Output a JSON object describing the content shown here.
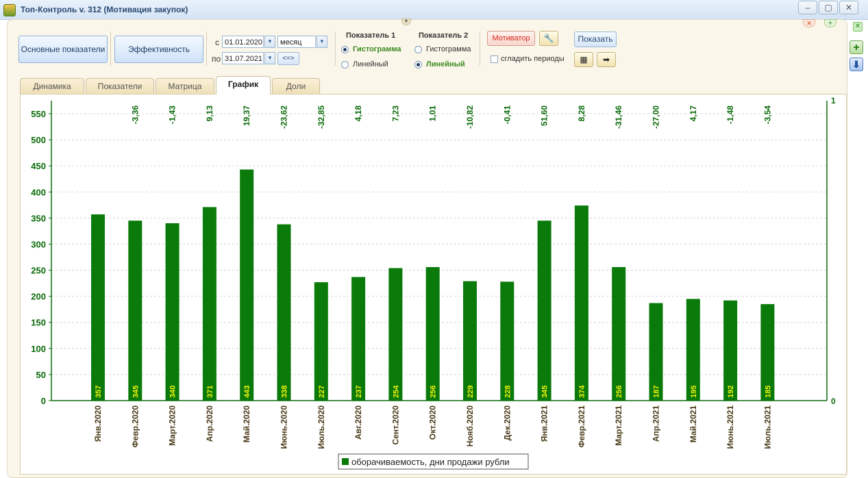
{
  "window": {
    "title": "Топ-Контроль v. 312 (Мотивация закупок)",
    "buttons": [
      "–",
      "▢",
      "✕"
    ]
  },
  "toolbar": {
    "main_button": "Основные показатели",
    "efficiency_button": "Эффективность",
    "from_label": "с",
    "to_label": "по",
    "date_from": "01.01.2020",
    "date_to": "31.07.2021",
    "period": "месяц",
    "swap_button": "<=>",
    "indicator1": {
      "heading": "Показатель 1",
      "options": [
        "Гистограмма",
        "Линейный"
      ],
      "selected": "Гистограмма"
    },
    "indicator2": {
      "heading": "Показатель 2",
      "options": [
        "Гистограмма",
        "Линейный"
      ],
      "selected": "Линейный"
    },
    "motivator_button": "Мотиватор",
    "show_button": "Показать",
    "smooth_label": "сгладить периоды",
    "smooth_checked": false
  },
  "tabs": [
    {
      "label": "Динамика",
      "active": false
    },
    {
      "label": "Показатели",
      "active": false
    },
    {
      "label": "Матрица",
      "active": false
    },
    {
      "label": "График",
      "active": true
    },
    {
      "label": "Доли",
      "active": false
    }
  ],
  "chart_data": {
    "type": "bar",
    "categories": [
      "Янв.2020",
      "Февр.2020",
      "Март.2020",
      "Апр.2020",
      "Май.2020",
      "Июнь.2020",
      "Июль.2020",
      "Авг.2020",
      "Сент.2020",
      "Окт.2020",
      "Нояб.2020",
      "Дек.2020",
      "Янв.2021",
      "Февр.2021",
      "Март.2021",
      "Апр.2021",
      "Май.2021",
      "Июнь.2021",
      "Июль.2021"
    ],
    "series": [
      {
        "name": "оборачиваемость, дни продажи рубли",
        "values": [
          357,
          345,
          340,
          371,
          443,
          338,
          227,
          237,
          254,
          256,
          229,
          228,
          345,
          374,
          256,
          187,
          195,
          192,
          185
        ]
      }
    ],
    "change_labels": [
      "",
      "-3,36",
      "-1,43",
      "9,13",
      "19,37",
      "-23,62",
      "-32,85",
      "4,18",
      "7,23",
      "1,01",
      "-10,82",
      "-0,41",
      "51,60",
      "8,28",
      "-31,46",
      "-27,00",
      "4,17",
      "-1,48",
      "-3,54"
    ],
    "y_ticks": [
      0,
      50,
      100,
      150,
      200,
      250,
      300,
      350,
      400,
      450,
      500,
      550
    ],
    "ylim": [
      0,
      550
    ],
    "y2_ticks": [
      0,
      1
    ],
    "legend_position": "bottom",
    "grid": true,
    "colors": {
      "bar": "#0a7a0a",
      "value_label": "#f2f20a",
      "axis_text": "#0a6a0a",
      "category_text": "#4a3a18"
    }
  }
}
